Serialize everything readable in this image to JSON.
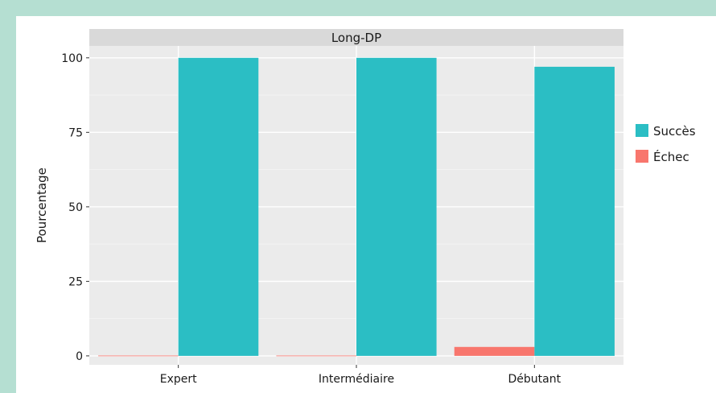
{
  "chart_data": {
    "type": "bar",
    "facet_label": "Long-DP",
    "categories": [
      "Expert",
      "Intermédiaire",
      "Débutant"
    ],
    "series": [
      {
        "name": "Échec",
        "values": [
          0,
          0,
          3
        ],
        "color": "#f8766d"
      },
      {
        "name": "Succès",
        "values": [
          100,
          100,
          97
        ],
        "color": "#2bbec4"
      }
    ],
    "legend_order": [
      "Succès",
      "Échec"
    ],
    "ylabel": "Pourcentage",
    "xlabel": "",
    "ylim": [
      -3,
      104
    ],
    "yticks": [
      0,
      25,
      50,
      75,
      100
    ],
    "grid": true,
    "legend_position": "right"
  }
}
